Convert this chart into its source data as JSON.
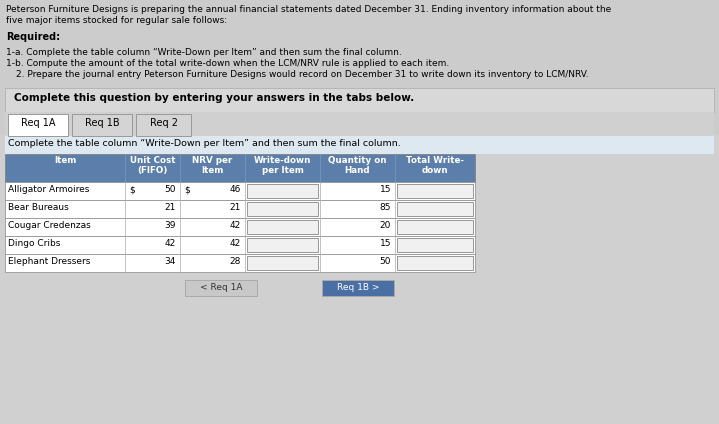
{
  "title_line1": "Peterson Furniture Designs is preparing the annual financial statements dated December 31. Ending inventory information about the",
  "title_line2": "five major items stocked for regular sale follows:",
  "required_label": "Required:",
  "req_items": [
    "1-a. Complete the table column “Write-Down per Item” and then sum the final column.",
    "1-b. Compute the amount of the total write-down when the LCM/NRV rule is applied to each item.",
    "2. Prepare the journal entry Peterson Furniture Designs would record on December 31 to write down its inventory to LCM/NRV."
  ],
  "complete_label": "Complete this question by entering your answers in the tabs below.",
  "tabs": [
    "Req 1A",
    "Req 1B",
    "Req 2"
  ],
  "active_tab": "Req 1A",
  "table_instruction": "Complete the table column “Write-Down per Item” and then sum the final column.",
  "col_headers": [
    "Item",
    "Unit Cost\n(FIFO)",
    "NRV per\nItem",
    "Write-down\nper Item",
    "Quantity on\nHand",
    "Total Write-\ndown"
  ],
  "rows": [
    [
      "Alligator Armoires",
      "$",
      "50",
      "$",
      "46",
      "",
      "15",
      ""
    ],
    [
      "Bear Bureaus",
      "",
      "21",
      "",
      "21",
      "",
      "85",
      ""
    ],
    [
      "Cougar Credenzas",
      "",
      "39",
      "",
      "42",
      "",
      "20",
      ""
    ],
    [
      "Dingo Cribs",
      "",
      "42",
      "",
      "42",
      "",
      "15",
      ""
    ],
    [
      "Elephant Dressers",
      "",
      "34",
      "",
      "28",
      "",
      "50",
      ""
    ]
  ],
  "nav_left": "< Req 1A",
  "nav_right": "Req 1B >",
  "header_bg": "#5b7faa",
  "tab_active_bg": "#ffffff",
  "tab_inactive_bg": "#d4d4d4",
  "section_bg": "#d8d8d8",
  "instr_bg": "#dde8f0",
  "table_border": "#888888",
  "nav_left_bg": "#c8c8c8",
  "nav_right_bg": "#4a6fa5",
  "page_bg": "#c8c8c8",
  "content_bg": "#e8e8e8",
  "white": "#ffffff",
  "input_bg": "#ffffff"
}
